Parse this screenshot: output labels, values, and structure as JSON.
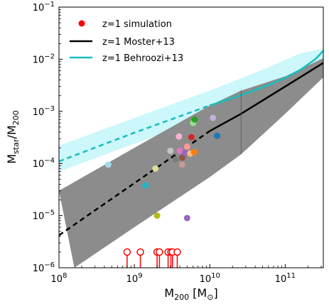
{
  "chart_data": {
    "type": "scatter",
    "xlabel": {
      "base": "M",
      "sub": "200",
      "unit_open": " [M",
      "unit_sub": "⊙",
      "unit_close": "]"
    },
    "ylabel": {
      "base": "M",
      "sub1": "star",
      "sep": "/M",
      "sub2": "200"
    },
    "xscale": "log",
    "yscale": "log",
    "xlim": [
      100000000.0,
      320000000000.0
    ],
    "ylim": [
      1e-06,
      0.1
    ],
    "x_ticks": [
      {
        "value": 100000000.0,
        "base": "10",
        "exp": "8"
      },
      {
        "value": 1000000000.0,
        "base": "10",
        "exp": "9"
      },
      {
        "value": 10000000000.0,
        "base": "10",
        "exp": "10"
      },
      {
        "value": 100000000000.0,
        "base": "10",
        "exp": "11"
      }
    ],
    "y_ticks": [
      {
        "value": 1e-06,
        "base": "10",
        "exp": "−6"
      },
      {
        "value": 1e-05,
        "base": "10",
        "exp": "−5"
      },
      {
        "value": 0.0001,
        "base": "10",
        "exp": "−4"
      },
      {
        "value": 0.001,
        "base": "10",
        "exp": "−3"
      },
      {
        "value": 0.01,
        "base": "10",
        "exp": "−2"
      },
      {
        "value": 0.1,
        "base": "10",
        "exp": "−1"
      }
    ],
    "legend": {
      "placement": "top-left",
      "entries": [
        {
          "label": "z=1 simulation",
          "marker": "circle",
          "color": "#ff0000"
        },
        {
          "label": "z=1 Moster+13",
          "marker": "line",
          "color": "#000000"
        },
        {
          "label": "z=1 Behroozi+13",
          "marker": "line",
          "color": "#17bfbf"
        }
      ]
    },
    "bands": [
      {
        "name": "Behroozi+13 scatter",
        "color": "#ccf7fb",
        "upper": [
          [
            100000000.0,
            0.00022
          ],
          [
            1000000000.0,
            0.00075
          ],
          [
            10000000000.0,
            0.0025
          ],
          [
            60000000000.0,
            0.007
          ],
          [
            160000000000.0,
            0.013
          ],
          [
            320000000000.0,
            0.016
          ]
        ],
        "lower": [
          [
            100000000.0,
            7e-05
          ],
          [
            1000000000.0,
            0.00024
          ],
          [
            10000000000.0,
            0.0008
          ],
          [
            60000000000.0,
            0.0024
          ],
          [
            160000000000.0,
            0.005
          ],
          [
            320000000000.0,
            0.008
          ]
        ]
      },
      {
        "name": "Moster+13 scatter",
        "color": "#8c8c8c",
        "upper": [
          [
            100000000.0,
            3e-05
          ],
          [
            1000000000.0,
            0.0002
          ],
          [
            10000000000.0,
            0.0013
          ],
          [
            26000000000.0,
            0.0025
          ],
          [
            100000000000.0,
            0.0047
          ],
          [
            320000000000.0,
            0.0105
          ]
        ],
        "lower": [
          [
            160000000.0,
            1e-06
          ],
          [
            1000000000.0,
            6e-06
          ],
          [
            10000000000.0,
            5.5e-05
          ],
          [
            26000000000.0,
            0.00015
          ],
          [
            100000000000.0,
            0.0009
          ],
          [
            320000000000.0,
            0.0045
          ]
        ]
      }
    ],
    "series": [
      {
        "name": "z=1 Behroozi+13",
        "color": "#17bfbf",
        "dashed": [
          [
            100000000.0,
            0.00011
          ],
          [
            1000000000.0,
            0.00039
          ],
          [
            10000000000.0,
            0.0013
          ]
        ],
        "solid": [
          [
            10000000000.0,
            0.0013
          ],
          [
            25000000000.0,
            0.002
          ],
          [
            60000000000.0,
            0.0032
          ],
          [
            100000000000.0,
            0.0044
          ],
          [
            160000000000.0,
            0.0063
          ],
          [
            250000000000.0,
            0.01
          ],
          [
            320000000000.0,
            0.0145
          ]
        ]
      },
      {
        "name": "z=1 Moster+13",
        "color": "#000000",
        "dashed": [
          [
            100000000.0,
            4.2e-06
          ],
          [
            10000000000.0,
            0.00042
          ]
        ],
        "solid": [
          [
            10000000000.0,
            0.00042
          ],
          [
            26000000000.0,
            0.0009
          ],
          [
            100000000000.0,
            0.003
          ],
          [
            320000000000.0,
            0.0085
          ]
        ]
      }
    ],
    "vline": {
      "x": 26000000000.0,
      "from": 0.00015,
      "to": 0.0025,
      "color": "#555555"
    },
    "points": [
      {
        "x": 450000000.0,
        "y": 9.5e-05,
        "color": "#a6d9e6"
      },
      {
        "x": 1400000000.0,
        "y": 3.8e-05,
        "color": "#20b5c8"
      },
      {
        "x": 2000000000.0,
        "y": 1e-05,
        "color": "#b8b91a"
      },
      {
        "x": 1900000000.0,
        "y": 8e-05,
        "color": "#dddd99"
      },
      {
        "x": 3000000000.0,
        "y": 0.000175,
        "color": "#c4c4c4"
      },
      {
        "x": 3500000000.0,
        "y": 0.00012,
        "color": "#7b7b7b"
      },
      {
        "x": 3900000000.0,
        "y": 0.00033,
        "color": "#f7b1d2"
      },
      {
        "x": 4000000000.0,
        "y": 0.000175,
        "color": "#e377c2"
      },
      {
        "x": 4300000000.0,
        "y": 0.00013,
        "color": "#8c564b"
      },
      {
        "x": 4300000000.0,
        "y": 9.5e-05,
        "color": "#c49c94"
      },
      {
        "x": 4700000000.0,
        "y": 0.00016,
        "color": "#9467bd"
      },
      {
        "x": 5000000000.0,
        "y": 0.00021,
        "color": "#ff9896"
      },
      {
        "x": 5500000000.0,
        "y": 0.000155,
        "color": "#ffbb78"
      },
      {
        "x": 6200000000.0,
        "y": 0.000165,
        "color": "#ff7f0e"
      },
      {
        "x": 5700000000.0,
        "y": 0.00032,
        "color": "#d62728"
      },
      {
        "x": 6000000000.0,
        "y": 0.0006,
        "color": "#98df8a"
      },
      {
        "x": 6300000000.0,
        "y": 0.0007,
        "color": "#2ca02c"
      },
      {
        "x": 11000000000.0,
        "y": 0.00075,
        "color": "#c5b0d5"
      },
      {
        "x": 12500000000.0,
        "y": 0.00034,
        "color": "#1f77b4"
      },
      {
        "x": 5000000000.0,
        "y": 9e-06,
        "color": "#9467bd"
      }
    ],
    "limits": {
      "color": "#ff0000",
      "at_y": 2e-06,
      "x": [
        800000000.0,
        1200000000.0,
        2000000000.0,
        2150000000.0,
        2800000000.0,
        3050000000.0,
        3200000000.0,
        3700000000.0
      ]
    }
  }
}
